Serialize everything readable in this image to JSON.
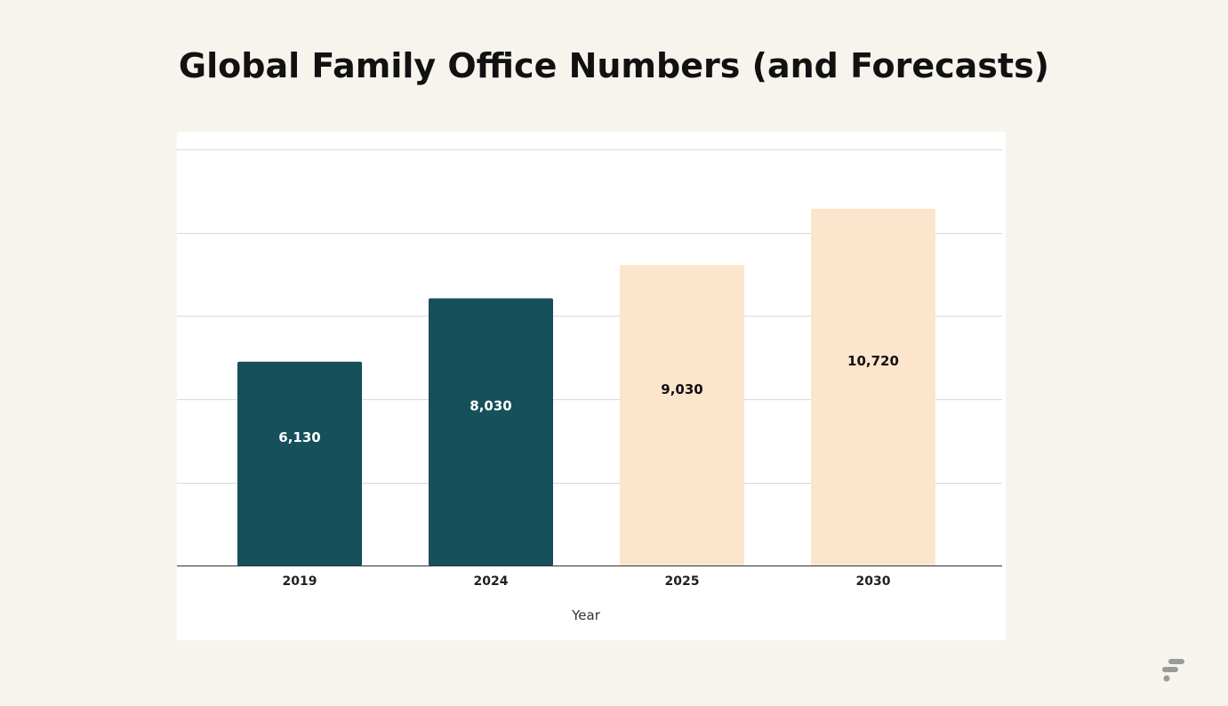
{
  "page": {
    "title": "Global Family Office Numbers (and Forecasts)"
  },
  "colors": {
    "background": "#f7f4ee",
    "actual": "#15505b",
    "forecast": "#fce5cd",
    "grid": "#d9d9d9",
    "axis": "#333333",
    "label_on_actual": "#ffffff",
    "label_on_forecast": "#111111",
    "logo": "#9a9a9a"
  },
  "chart_data": {
    "type": "bar",
    "title": "Global Family Office Numbers (and Forecasts)",
    "xlabel": "Year",
    "ylabel": "",
    "categories": [
      "2019",
      "2024",
      "2025",
      "2030"
    ],
    "values": [
      6130,
      8030,
      9030,
      10720
    ],
    "value_labels": [
      "6,130",
      "8,030",
      "9,030",
      "10,720"
    ],
    "forecast": [
      false,
      false,
      true,
      true
    ],
    "ylim": [
      0,
      12500
    ],
    "gridline_values": [
      2500,
      5000,
      7500,
      10000,
      12500
    ],
    "grid": true,
    "legend": "none"
  },
  "brand": {
    "icon": "brand-logo-icon"
  }
}
